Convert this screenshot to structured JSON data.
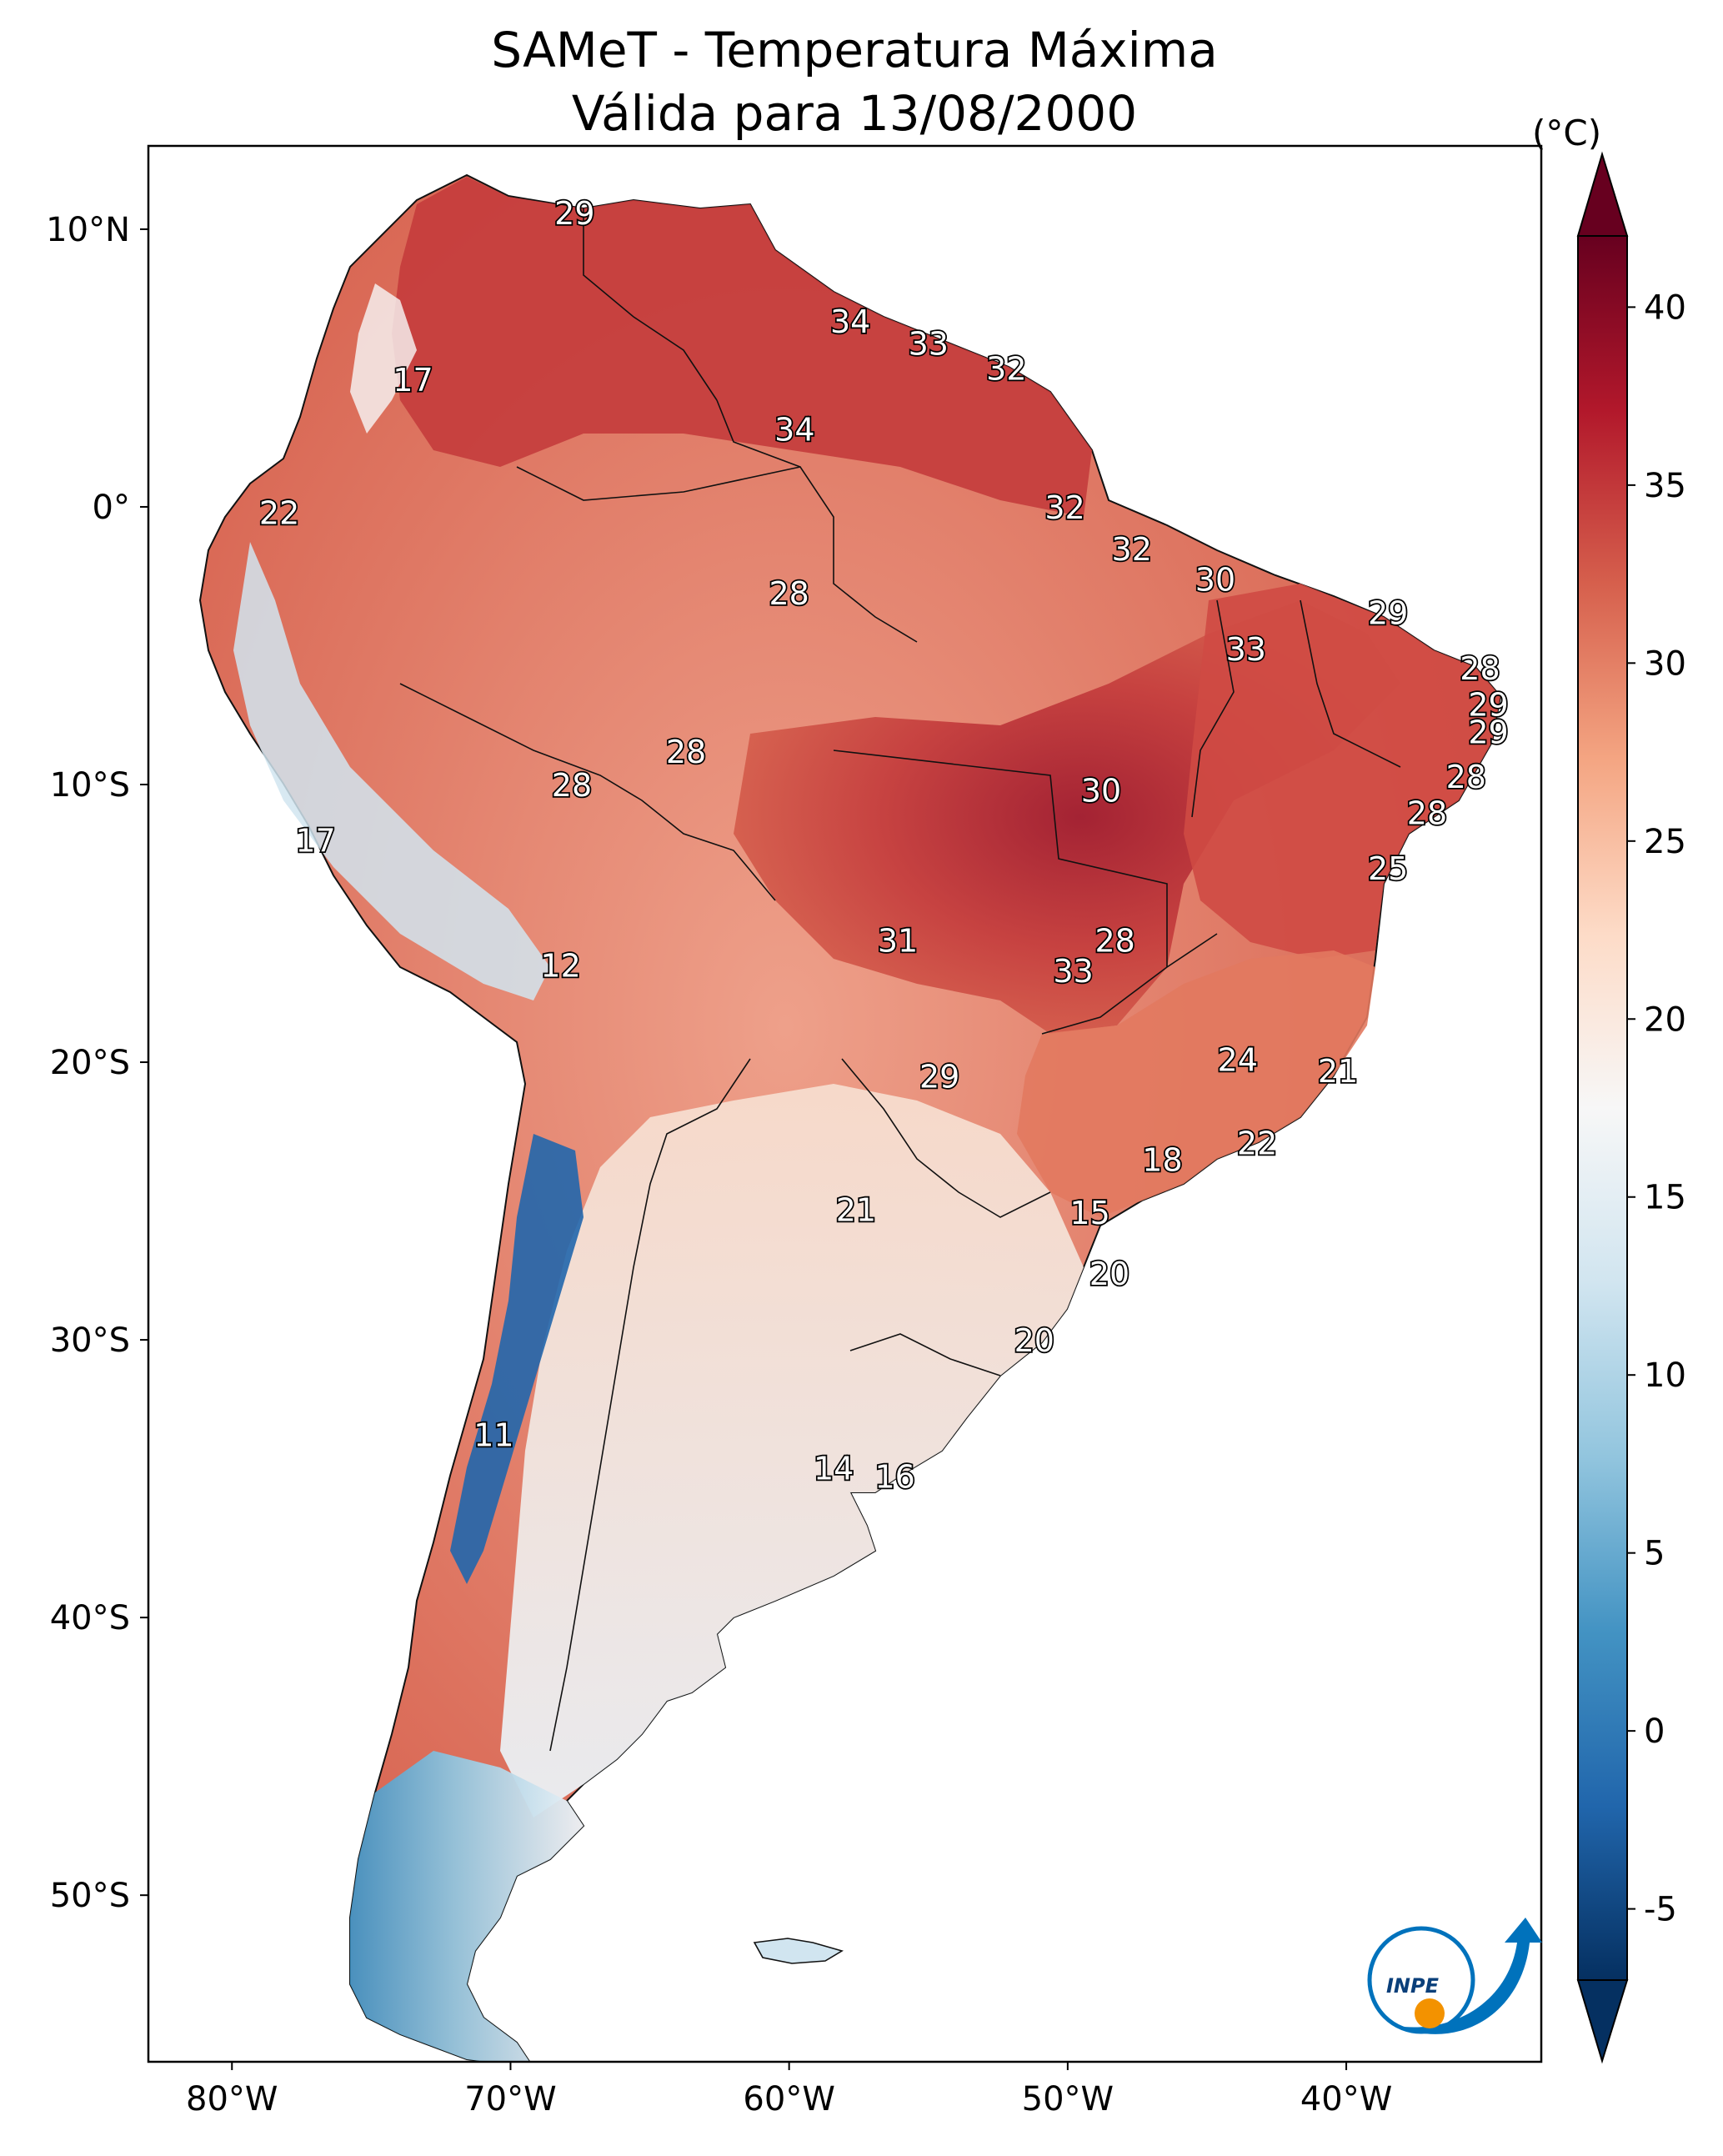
{
  "title": {
    "line1": "SAMeT - Temperatura Máxima",
    "line2": "Válida para 13/08/2000"
  },
  "map": {
    "lon_range": [
      -83,
      -33
    ],
    "lat_range": [
      -56,
      13
    ],
    "lon_ticks": [
      {
        "value": -80,
        "label": "80°W"
      },
      {
        "value": -70,
        "label": "70°W"
      },
      {
        "value": -60,
        "label": "60°W"
      },
      {
        "value": -50,
        "label": "50°W"
      },
      {
        "value": -40,
        "label": "40°W"
      }
    ],
    "lat_ticks": [
      {
        "value": 10,
        "label": "10°N"
      },
      {
        "value": 0,
        "label": "0°"
      },
      {
        "value": -10,
        "label": "10°S"
      },
      {
        "value": -20,
        "label": "20°S"
      },
      {
        "value": -30,
        "label": "30°S"
      },
      {
        "value": -40,
        "label": "40°S"
      },
      {
        "value": -50,
        "label": "50°S"
      }
    ],
    "city_values": [
      {
        "lon": -67.7,
        "lat": 10.6,
        "value": "29"
      },
      {
        "lon": -57.8,
        "lat": 6.7,
        "value": "34"
      },
      {
        "lon": -55.0,
        "lat": 5.9,
        "value": "33"
      },
      {
        "lon": -52.2,
        "lat": 5.0,
        "value": "32"
      },
      {
        "lon": -73.5,
        "lat": 4.6,
        "value": "17"
      },
      {
        "lon": -59.8,
        "lat": 2.8,
        "value": "34"
      },
      {
        "lon": -50.1,
        "lat": 0.0,
        "value": "32"
      },
      {
        "lon": -78.3,
        "lat": -0.2,
        "value": "22"
      },
      {
        "lon": -47.7,
        "lat": -1.5,
        "value": "32"
      },
      {
        "lon": -60.0,
        "lat": -3.1,
        "value": "28"
      },
      {
        "lon": -44.7,
        "lat": -2.6,
        "value": "30"
      },
      {
        "lon": -38.5,
        "lat": -3.8,
        "value": "29"
      },
      {
        "lon": -43.6,
        "lat": -5.1,
        "value": "33"
      },
      {
        "lon": -35.2,
        "lat": -5.8,
        "value": "28"
      },
      {
        "lon": -34.9,
        "lat": -7.1,
        "value": "29"
      },
      {
        "lon": -34.9,
        "lat": -8.1,
        "value": "29"
      },
      {
        "lon": -63.7,
        "lat": -8.8,
        "value": "28"
      },
      {
        "lon": -67.8,
        "lat": -10.0,
        "value": "28"
      },
      {
        "lon": -35.7,
        "lat": -9.7,
        "value": "28"
      },
      {
        "lon": -48.8,
        "lat": -10.2,
        "value": "30"
      },
      {
        "lon": -37.1,
        "lat": -11.0,
        "value": "28"
      },
      {
        "lon": -77.0,
        "lat": -12.0,
        "value": "17"
      },
      {
        "lon": -38.5,
        "lat": -13.0,
        "value": "25"
      },
      {
        "lon": -56.1,
        "lat": -15.6,
        "value": "31"
      },
      {
        "lon": -48.3,
        "lat": -15.6,
        "value": "28"
      },
      {
        "lon": -49.8,
        "lat": -16.7,
        "value": "33"
      },
      {
        "lon": -68.2,
        "lat": -16.5,
        "value": "12"
      },
      {
        "lon": -43.9,
        "lat": -19.9,
        "value": "24"
      },
      {
        "lon": -54.6,
        "lat": -20.5,
        "value": "29"
      },
      {
        "lon": -40.3,
        "lat": -20.3,
        "value": "21"
      },
      {
        "lon": -43.2,
        "lat": -22.9,
        "value": "22"
      },
      {
        "lon": -46.6,
        "lat": -23.5,
        "value": "18"
      },
      {
        "lon": -57.6,
        "lat": -25.3,
        "value": "21"
      },
      {
        "lon": -49.2,
        "lat": -25.4,
        "value": "15"
      },
      {
        "lon": -48.5,
        "lat": -27.6,
        "value": "20"
      },
      {
        "lon": -51.2,
        "lat": -30.0,
        "value": "20"
      },
      {
        "lon": -70.6,
        "lat": -33.4,
        "value": "11"
      },
      {
        "lon": -58.4,
        "lat": -34.6,
        "value": "14"
      },
      {
        "lon": -56.2,
        "lat": -34.9,
        "value": "16"
      }
    ]
  },
  "colorbar": {
    "unit": "(°C)",
    "min": -7,
    "max": 42,
    "ticks": [
      "40",
      "35",
      "30",
      "25",
      "20",
      "15",
      "10",
      "5",
      "0",
      "-5"
    ],
    "tick_values": [
      40,
      35,
      30,
      25,
      20,
      15,
      10,
      5,
      0,
      -5
    ],
    "colormap": "RdBu_r",
    "colors": [
      "#053061",
      "#2166ac",
      "#4393c3",
      "#92c5de",
      "#d1e5f0",
      "#f7f7f7",
      "#fddbc7",
      "#f4a582",
      "#d6604d",
      "#b2182b",
      "#67001f"
    ]
  },
  "logo": {
    "text": "INPE",
    "accent": "#f39200",
    "primary": "#0072bc"
  }
}
